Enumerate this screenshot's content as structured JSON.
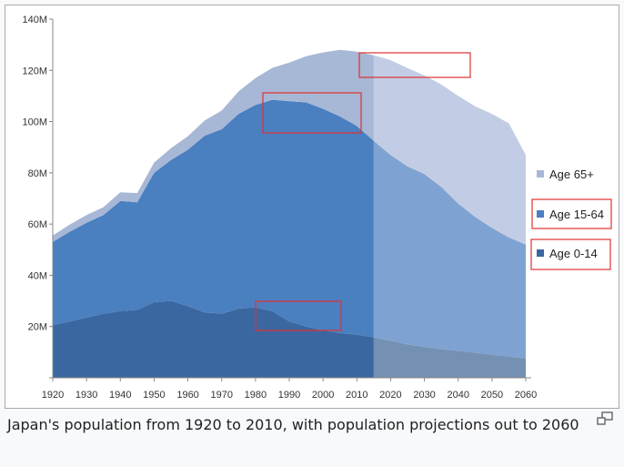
{
  "caption": "Japan's population from 1920 to 2010, with population projections out to 2060",
  "chart_data": {
    "type": "area",
    "stacked": true,
    "x": [
      1920,
      1925,
      1930,
      1935,
      1940,
      1945,
      1950,
      1955,
      1960,
      1965,
      1970,
      1975,
      1980,
      1985,
      1990,
      1995,
      2000,
      2005,
      2010,
      2015,
      2020,
      2025,
      2030,
      2035,
      2040,
      2045,
      2050,
      2055,
      2060
    ],
    "projection_start": 2015,
    "series": [
      {
        "name": "Age 0-14",
        "color": "#3a67a0",
        "projected_color": "#7490b2",
        "values": [
          20.5,
          22,
          23.5,
          25,
          26,
          26.5,
          29.5,
          30,
          28,
          25.5,
          25,
          27,
          27.5,
          26,
          22,
          20,
          18.5,
          17.5,
          16.8,
          15.8,
          14.5,
          13,
          12,
          11.2,
          10.5,
          9.8,
          9,
          8.3,
          7.5
        ]
      },
      {
        "name": "Age 15-64",
        "color": "#4a7fc0",
        "projected_color": "#7ea3d2",
        "values": [
          32.5,
          35,
          37,
          38.5,
          43,
          42,
          50.5,
          55,
          61,
          69,
          72,
          76,
          79,
          82.5,
          86,
          87.5,
          86.5,
          84.5,
          81.5,
          76.7,
          72.5,
          69.5,
          67.5,
          63.3,
          57.5,
          53,
          49.5,
          46.5,
          44.5
        ]
      },
      {
        "name": "Age 65+",
        "color": "#a7b7d6",
        "projected_color": "#c2cde5",
        "values": [
          2.5,
          2.8,
          3,
          3.1,
          3.4,
          3.6,
          4,
          4.6,
          5.3,
          6,
          7.3,
          8.8,
          10.5,
          12.5,
          15,
          18,
          22,
          26,
          29,
          33.4,
          37,
          38.4,
          38.5,
          40,
          42,
          43.2,
          44.5,
          44.5,
          35
        ]
      }
    ],
    "xlim": [
      1920,
      2060
    ],
    "ylim": [
      0,
      140
    ],
    "x_ticks": [
      "1920",
      "1930",
      "1940",
      "1950",
      "1960",
      "1970",
      "1980",
      "1990",
      "2000",
      "2010",
      "2020",
      "2030",
      "2040",
      "2050",
      "2060"
    ],
    "y_ticks": [
      "20M",
      "40M",
      "60M",
      "80M",
      "100M",
      "120M",
      "140M"
    ],
    "y_tick_values": [
      20,
      40,
      60,
      80,
      100,
      120,
      140
    ],
    "legend": [
      "Age 65+",
      "Age 15-64",
      "Age 0-14"
    ],
    "legend_position": "right",
    "grid": false,
    "highlight_box_color": "#e03131"
  },
  "enlarge_icon": "enlarge-icon"
}
